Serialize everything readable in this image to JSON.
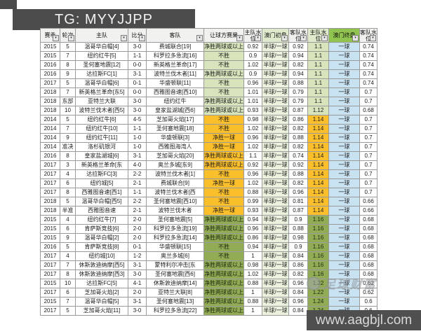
{
  "banner": {
    "text": "TG: MYYJJPP"
  },
  "watermark": {
    "logo_text": "足球财富",
    "url": "www.aagbjl.com"
  },
  "icons": {
    "filter_dropdown": "▾"
  },
  "colors": {
    "banner_bg": "#4b4b4b",
    "url_bg": "#4f4f4f",
    "section_green_light": "#d7e4bc",
    "section_orange": "#fcbf2c",
    "section_green_dark": "#92ab55",
    "open_col": "#eaf1dd",
    "final_col": "#c9e2f1",
    "header_tint": "#dfe9cb",
    "header_final": "#90c34f"
  },
  "table": {
    "headers": [
      {
        "id": "season",
        "label": "赛季"
      },
      {
        "id": "round",
        "label": "轮次"
      },
      {
        "id": "home-team",
        "label": "主队"
      },
      {
        "id": "score",
        "label": "比分"
      },
      {
        "id": "away-team",
        "label": "客队"
      },
      {
        "id": "handicap-result",
        "label": "让球方赛果"
      },
      {
        "id": "home-water",
        "label": "主队水位"
      },
      {
        "id": "macau-opening",
        "label": "澳门初盘"
      },
      {
        "id": "away-water",
        "label": "客队水位"
      },
      {
        "id": "home-water-final",
        "label": "主队水位"
      },
      {
        "id": "macau-final",
        "label": "澳门终盘"
      },
      {
        "id": "away-water-final",
        "label": "客队水位"
      }
    ],
    "row_tones": [
      "g1",
      "g1",
      "g1",
      "g1",
      "g1",
      "g1",
      "g1",
      "g1",
      "or",
      "or",
      "or",
      "or",
      "or",
      "or",
      "or",
      "or",
      "or",
      "or",
      "or",
      "g2",
      "g2",
      "g2",
      "g2",
      "g2",
      "g2",
      "g2",
      "g2",
      "g2",
      "g2",
      "g2"
    ],
    "rows": [
      [
        "2015",
        "5",
        "温哥华白帽[4]",
        "3-0",
        "费城联合[19]",
        "净胜两球或以上",
        "0.92",
        "半球/一球",
        "0.92",
        "1.1",
        "一球",
        "0.74"
      ],
      [
        "2015",
        "7",
        "纽约红牛[5]",
        "1-1",
        "科罗拉多急流[16]",
        "不胜",
        "0.9",
        "半球/一球",
        "0.94",
        "1.1",
        "一球",
        "0.74"
      ],
      [
        "2016",
        "8",
        "圣何塞地震[12]",
        "0-0",
        "新英格兰革命[17]",
        "不胜",
        "1.02",
        "半球/一球",
        "0.82",
        "1.1",
        "一球",
        "0.74"
      ],
      [
        "2016",
        "9",
        "达拉斯FC[1]",
        "3-1",
        "波特兰伐木者[11]",
        "净胜两球或以上",
        "0.9",
        "半球/一球",
        "0.94",
        "1.1",
        "一球",
        "0.74"
      ],
      [
        "2017",
        "5",
        "温哥华白帽[6]",
        "0-1",
        "华盛顿联[11]",
        "不胜",
        "0.96",
        "半球/一球",
        "0.88",
        "1.1",
        "一球",
        "0.74"
      ],
      [
        "2018",
        "7",
        "新英格兰革命[东5]",
        "0-0",
        "西雅图音速[西10]",
        "不胜",
        "1.01",
        "半球/一球",
        "0.79",
        "1.1",
        "一球",
        "0.7"
      ],
      [
        "2018",
        "东部",
        "亚特兰大联",
        "3-0",
        "纽约红牛",
        "净胜两球或以上",
        "1.01",
        "半球/一球",
        "0.79",
        "1.1",
        "一球",
        "0.7"
      ],
      [
        "2018",
        "10",
        "波特兰伐木者[西5]",
        "3-0",
        "皇家盐湖城[西6]",
        "净胜两球或以上",
        "0.93",
        "半球/一球",
        "0.87",
        "1.12",
        "一球",
        "0.68"
      ],
      [
        "2014",
        "5",
        "纽约红牛[6]",
        "4-5",
        "芝加哥火焰[17]",
        "不胜",
        "0.98",
        "半球/一球",
        "0.86",
        "1.14",
        "一球",
        "0.7"
      ],
      [
        "2014",
        "7",
        "纽约红牛[10]",
        "1-1",
        "圣何塞地震[18]",
        "不胜",
        "1.02",
        "半球/一球",
        "0.82",
        "1.14",
        "一球",
        "0.7"
      ],
      [
        "2014",
        "9",
        "纽约红牛[11]",
        "1-0",
        "华盛顿联[3]",
        "净胜一球",
        "0.96",
        "半球/一球",
        "0.88",
        "1.14",
        "一球",
        "0.7"
      ],
      [
        "2014",
        "准决",
        "洛杉矶银河",
        "1-0",
        "西雅图海湾人",
        "净胜一球",
        "1.02",
        "半球/一球",
        "0.82",
        "1.14",
        "一球",
        "0.7"
      ],
      [
        "2016",
        "8",
        "皇家盐湖城[6]",
        "3-1",
        "芝加哥火焰[20]",
        "净胜两球或以上",
        "1.1",
        "半球/一球",
        "0.74",
        "1.14",
        "一球",
        "0.7"
      ],
      [
        "2017",
        "3",
        "新英格兰革命[东",
        "4-0",
        "奥兰多城[东9]",
        "净胜两球或以上",
        "0.92",
        "半球/一球",
        "0.92",
        "1.14",
        "一球",
        "0.7"
      ],
      [
        "2017",
        "4",
        "达拉斯FC[3]",
        "2-2",
        "波特兰伐木者[1]",
        "不胜",
        "0.96",
        "半球/一球",
        "0.88",
        "1.14",
        "一球",
        "0.7"
      ],
      [
        "2017",
        "6",
        "纽约城[5]",
        "2-1",
        "费城联合[9]",
        "净胜一球",
        "1.02",
        "半球/一球",
        "0.82",
        "1.14",
        "一球",
        "0.7"
      ],
      [
        "2017",
        "8",
        "西雅图音速[西1]",
        "1-1",
        "波特兰伐木者[西",
        "不胜",
        "0.88",
        "半球/一球",
        "0.96",
        "1.14",
        "一球",
        "0.7"
      ],
      [
        "2018",
        "5",
        "温哥华白帽[西5]",
        "2-2",
        "圣何塞地震[西10]",
        "不胜",
        "0.99",
        "半球/一球",
        "0.81",
        "1.14",
        "一球",
        "0.66"
      ],
      [
        "2018",
        "半准",
        "西雅图音速",
        "2-1",
        "波特兰伐木者",
        "净胜一球",
        "0.93",
        "半球/一球",
        "0.87",
        "1.14",
        "一球",
        "0.66"
      ],
      [
        "2015",
        "4",
        "纽约红牛[7]",
        "2-0",
        "圣何塞地震[5]",
        "净胜两球或以上",
        "0.94",
        "半球/一球",
        "0.9",
        "1.16",
        "一球",
        "0.68"
      ],
      [
        "2015",
        "6",
        "肯萨斯竞技[6]",
        "2-0",
        "科罗拉多急流[19]",
        "净胜两球或以上",
        "0.96",
        "半球/一球",
        "0.88",
        "1.16",
        "一球",
        "0.68"
      ],
      [
        "2015",
        "9",
        "温哥华白帽[2]",
        "2-0",
        "科罗拉多急流[14]",
        "净胜两球或以上",
        "0.86",
        "半球/一球",
        "0.98",
        "1.16",
        "一球",
        "0.68"
      ],
      [
        "2016",
        "5",
        "肯萨斯竞技[8]",
        "0-1",
        "华盛顿联[15]",
        "不胜",
        "0.94",
        "半球/一球",
        "0.9",
        "1.16",
        "一球",
        "0.68"
      ],
      [
        "2017",
        "4",
        "纽约城[10]",
        "1-2",
        "奥兰多城[6]",
        "不胜",
        "1",
        "半球/一球",
        "0.84",
        "1.16",
        "一球",
        "0.68"
      ],
      [
        "2017",
        "7",
        "休斯敦迪纳摩[西5]",
        "3-1",
        "蒙特利尔冲击[东",
        "净胜两球或以上",
        "0.98",
        "半球/一球",
        "0.86",
        "1.16",
        "一球",
        "0.68"
      ],
      [
        "2017",
        "8",
        "休斯敦迪纳摩[西3]",
        "3-0",
        "圣何塞地震[西6]",
        "净胜两球或以上",
        "1.02",
        "半球/一球",
        "0.82",
        "1.16",
        "一球",
        "0.68"
      ],
      [
        "2015",
        "10",
        "达拉斯FC[5]",
        "4-1",
        "休斯敦迪纳摩[14]",
        "净胜两球或以上",
        "0.88",
        "半球/一球",
        "0.96",
        "1.22",
        "一球",
        "0.62"
      ],
      [
        "2017",
        "6",
        "芝加哥火焰[2]",
        "2-0",
        "亚特兰大联[8]",
        "净胜两球或以上",
        "1",
        "半球/一球",
        "0.84",
        "1.22",
        "一球",
        "0.62"
      ],
      [
        "2015",
        "7",
        "温哥华白帽[5]",
        "3-1",
        "圣何塞地震[13]",
        "净胜两球或以上",
        "0.88",
        "半球/一球",
        "0.96",
        "1.24",
        "一球",
        "0.6"
      ],
      [
        "2017",
        "5",
        "芝加哥火焰[11]",
        "3-0",
        "科罗拉多急流[22]",
        "净胜两球或以上",
        "1",
        "半球/一球",
        "0.84",
        "1.24",
        "一球",
        "0.6"
      ]
    ]
  }
}
